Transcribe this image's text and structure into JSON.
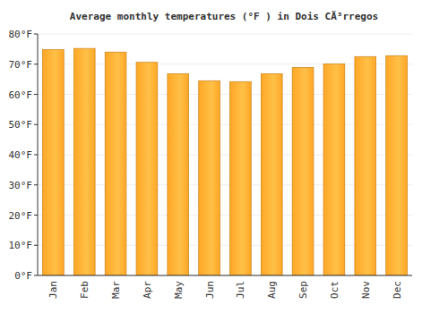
{
  "chart_data": {
    "type": "bar",
    "title": "Average monthly temperatures (°F ) in Dois CÃ³rregos",
    "categories": [
      "Jan",
      "Feb",
      "Mar",
      "Apr",
      "May",
      "Jun",
      "Jul",
      "Aug",
      "Sep",
      "Oct",
      "Nov",
      "Dec"
    ],
    "values": [
      74.8,
      75.2,
      74.0,
      70.6,
      66.8,
      64.5,
      64.2,
      66.8,
      68.9,
      70.1,
      72.5,
      72.8
    ],
    "color": "#ffa726",
    "ylim": [
      0,
      80
    ],
    "yticks": [
      {
        "value": 0,
        "label": "0°F"
      },
      {
        "value": 10,
        "label": "10°F"
      },
      {
        "value": 20,
        "label": "20°F"
      },
      {
        "value": 30,
        "label": "30°F"
      },
      {
        "value": 40,
        "label": "40°F"
      },
      {
        "value": 50,
        "label": "50°F"
      },
      {
        "value": 60,
        "label": "60°F"
      },
      {
        "value": 70,
        "label": "70°F"
      },
      {
        "value": 80,
        "label": "80°F"
      }
    ],
    "grid": true
  }
}
